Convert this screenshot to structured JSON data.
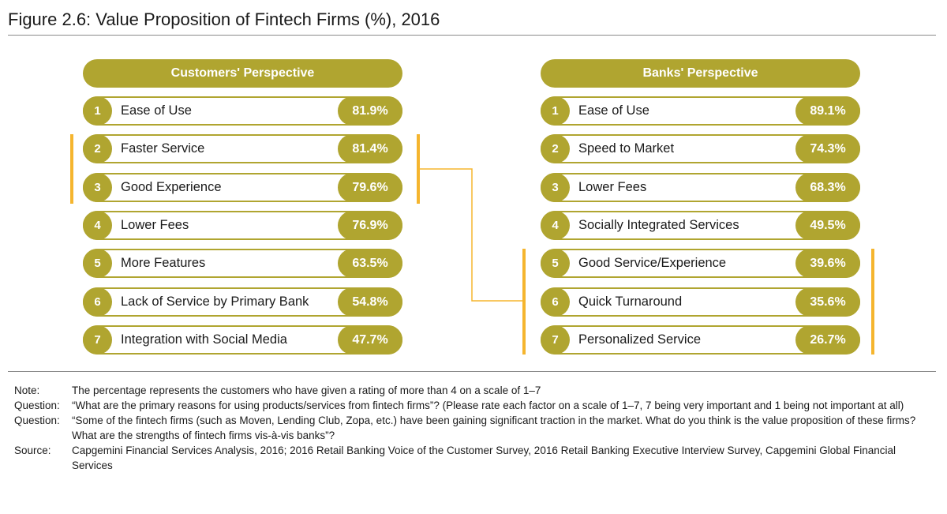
{
  "title": "Figure 2.6: Value Proposition of Fintech Firms (%), 2016",
  "colors": {
    "accent": "#b0a530",
    "highlight": "#f5b52e"
  },
  "chart_data": [
    {
      "type": "table",
      "title": "Customers' Perspective",
      "ranks": [
        "1",
        "2",
        "3",
        "4",
        "5",
        "6",
        "7"
      ],
      "categories": [
        "Ease of Use",
        "Faster Service",
        "Good Experience",
        "Lower Fees",
        "More Features",
        "Lack of Service by Primary Bank",
        "Integration with Social Media"
      ],
      "value_labels": [
        "81.9%",
        "81.4%",
        "79.6%",
        "76.9%",
        "63.5%",
        "54.8%",
        "47.7%"
      ],
      "values": [
        81.9,
        81.4,
        79.6,
        76.9,
        63.5,
        54.8,
        47.7
      ],
      "highlighted_ranks": [
        2,
        3
      ]
    },
    {
      "type": "table",
      "title": "Banks' Perspective",
      "ranks": [
        "1",
        "2",
        "3",
        "4",
        "5",
        "6",
        "7"
      ],
      "categories": [
        "Ease of Use",
        "Speed to Market",
        "Lower Fees",
        "Socially Integrated Services",
        "Good Service/Experience",
        "Quick Turnaround",
        "Personalized Service"
      ],
      "value_labels": [
        "89.1%",
        "74.3%",
        "68.3%",
        "49.5%",
        "39.6%",
        "35.6%",
        "26.7%"
      ],
      "values": [
        89.1,
        74.3,
        68.3,
        49.5,
        39.6,
        35.6,
        26.7
      ],
      "highlighted_ranks": [
        5,
        6,
        7
      ]
    }
  ],
  "notes": [
    {
      "key": "Note:",
      "text": "The percentage represents the customers who have given a rating of more than 4 on a scale of 1–7"
    },
    {
      "key": "Question:",
      "text": "“What are the primary reasons for using products/services from fintech firms”? (Please rate each factor on a scale of 1–7, 7 being very important and 1 being not important at all)"
    },
    {
      "key": "Question:",
      "text": "“Some of the fintech firms (such as Moven, Lending Club, Zopa, etc.) have been gaining significant traction in the market. What do you think is the value proposition of these firms? What are the strengths of fintech firms vis-à-vis banks”?"
    },
    {
      "key": "Source:",
      "text": "Capgemini Financial Services Analysis, 2016; 2016 Retail Banking Voice of the Customer Survey, 2016 Retail Banking Executive Interview Survey, Capgemini Global Financial Services"
    }
  ]
}
